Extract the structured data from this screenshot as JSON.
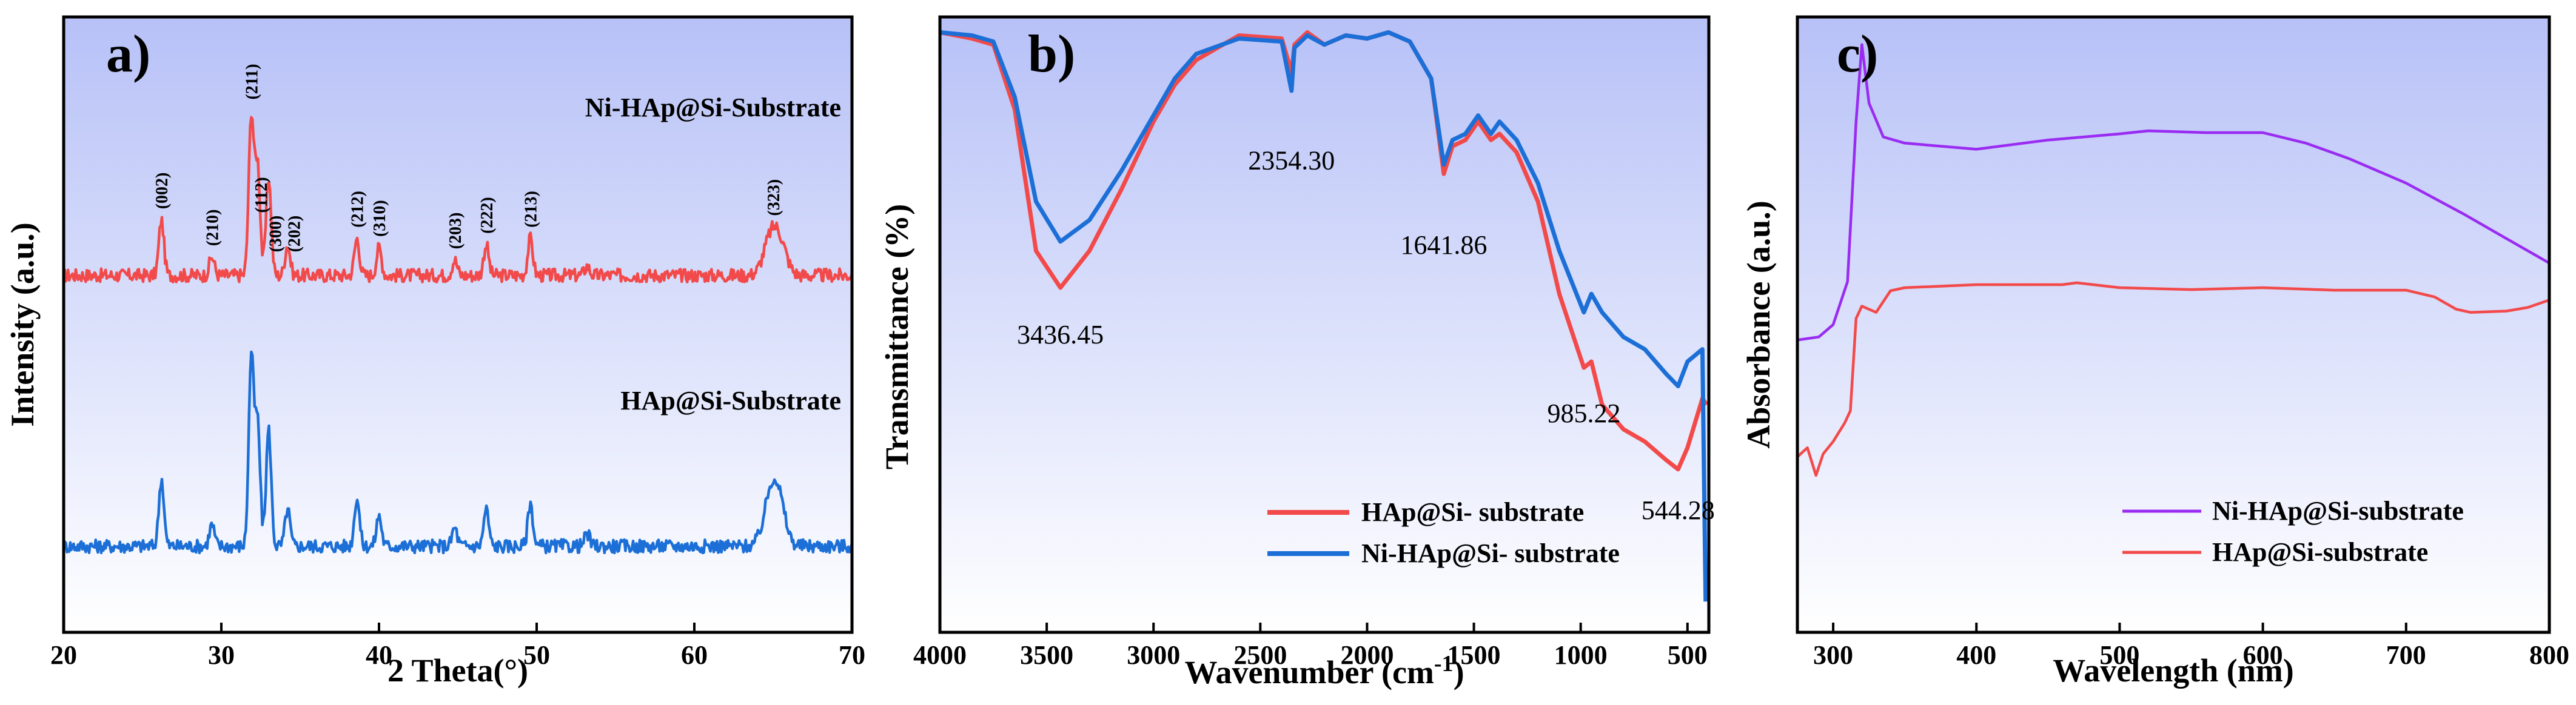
{
  "colors": {
    "red": "#f24a4a",
    "blue": "#1c6fd6",
    "purple": "#9a2bf2",
    "frame": "#000000",
    "bg_top": "#b7c1f7",
    "bg_bottom": "#ffffff"
  },
  "chart_data": [
    {
      "panel": "a)",
      "type": "line",
      "title": "",
      "xlabel": "2 Theta(°)",
      "ylabel": "Intensity (a.u.)",
      "xlim": [
        20,
        70
      ],
      "xticks": [
        20,
        30,
        40,
        50,
        60,
        70
      ],
      "yticks_labeled": false,
      "series": [
        {
          "name": "Ni-HAp@Si-Substrate",
          "color": "red",
          "baseline": 0.58,
          "peaks": [
            [
              26.2,
              0.09
            ],
            [
              29.4,
              0.03
            ],
            [
              31.9,
              0.26
            ],
            [
              32.3,
              0.18
            ],
            [
              33.0,
              0.16
            ],
            [
              34.2,
              0.05
            ],
            [
              38.6,
              0.06
            ],
            [
              40.0,
              0.045
            ],
            [
              44.8,
              0.025
            ],
            [
              46.8,
              0.05
            ],
            [
              49.6,
              0.06
            ],
            [
              53.2,
              0.015
            ],
            [
              64.8,
              0.05
            ],
            [
              65.4,
              0.05
            ]
          ]
        },
        {
          "name": "HAp@Si-Substrate",
          "color": "blue",
          "baseline": 0.14,
          "peaks": [
            [
              26.2,
              0.11
            ],
            [
              29.4,
              0.035
            ],
            [
              31.9,
              0.31
            ],
            [
              32.3,
              0.2
            ],
            [
              33.0,
              0.19
            ],
            [
              34.2,
              0.06
            ],
            [
              38.6,
              0.08
            ],
            [
              40.0,
              0.05
            ],
            [
              44.8,
              0.03
            ],
            [
              46.8,
              0.06
            ],
            [
              49.6,
              0.07
            ],
            [
              53.2,
              0.02
            ],
            [
              64.8,
              0.06
            ],
            [
              65.3,
              0.07
            ]
          ]
        }
      ],
      "annotations": [
        {
          "text": "(002)",
          "x": 26.2
        },
        {
          "text": "(210)",
          "x": 29.4
        },
        {
          "text": "(211)",
          "x": 31.9
        },
        {
          "text": "(112)",
          "x": 32.5
        },
        {
          "text": "(300)",
          "x": 33.4
        },
        {
          "text": "(202)",
          "x": 34.6
        },
        {
          "text": "(212)",
          "x": 38.6
        },
        {
          "text": "(310)",
          "x": 40.0
        },
        {
          "text": "(203)",
          "x": 44.8
        },
        {
          "text": "(222)",
          "x": 46.8
        },
        {
          "text": "(213)",
          "x": 49.6
        },
        {
          "text": "(323)",
          "x": 65.0
        }
      ]
    },
    {
      "panel": "b)",
      "type": "line",
      "title": "",
      "xlabel": "Wavenumber (cm",
      "xlabel_sup": "-1",
      "xlabel_end": ")",
      "ylabel": "Transmittance (%)",
      "xlim": [
        4000,
        400
      ],
      "xticks": [
        4000,
        3500,
        3000,
        2500,
        2000,
        1500,
        1000,
        500
      ],
      "xtick_labels": [
        "4000",
        "3500",
        "3000",
        "2500",
        "2000",
        "1500",
        "1000",
        "500"
      ],
      "series": [
        {
          "name": "HAp@Si- substrate",
          "color": "red",
          "points": [
            [
              4000,
              0.975
            ],
            [
              3850,
              0.965
            ],
            [
              3750,
              0.955
            ],
            [
              3650,
              0.85
            ],
            [
              3550,
              0.62
            ],
            [
              3436,
              0.56
            ],
            [
              3300,
              0.62
            ],
            [
              3150,
              0.72
            ],
            [
              3000,
              0.83
            ],
            [
              2900,
              0.89
            ],
            [
              2800,
              0.93
            ],
            [
              2600,
              0.97
            ],
            [
              2400,
              0.965
            ],
            [
              2354,
              0.91
            ],
            [
              2340,
              0.955
            ],
            [
              2280,
              0.975
            ],
            [
              2200,
              0.955
            ],
            [
              2100,
              0.97
            ],
            [
              2000,
              0.965
            ],
            [
              1900,
              0.975
            ],
            [
              1800,
              0.96
            ],
            [
              1700,
              0.9
            ],
            [
              1641,
              0.745
            ],
            [
              1600,
              0.79
            ],
            [
              1540,
              0.8
            ],
            [
              1480,
              0.83
            ],
            [
              1420,
              0.8
            ],
            [
              1380,
              0.81
            ],
            [
              1300,
              0.78
            ],
            [
              1200,
              0.7
            ],
            [
              1100,
              0.55
            ],
            [
              985,
              0.43
            ],
            [
              950,
              0.44
            ],
            [
              900,
              0.37
            ],
            [
              800,
              0.33
            ],
            [
              700,
              0.31
            ],
            [
              600,
              0.28
            ],
            [
              544,
              0.265
            ],
            [
              500,
              0.3
            ],
            [
              430,
              0.38
            ],
            [
              410,
              0.37
            ]
          ]
        },
        {
          "name": "Ni-HAp@Si- substrate",
          "color": "blue",
          "points": [
            [
              4000,
              0.975
            ],
            [
              3850,
              0.97
            ],
            [
              3750,
              0.96
            ],
            [
              3650,
              0.87
            ],
            [
              3550,
              0.7
            ],
            [
              3436,
              0.635
            ],
            [
              3300,
              0.67
            ],
            [
              3150,
              0.75
            ],
            [
              3000,
              0.84
            ],
            [
              2900,
              0.9
            ],
            [
              2800,
              0.94
            ],
            [
              2600,
              0.965
            ],
            [
              2400,
              0.96
            ],
            [
              2354,
              0.88
            ],
            [
              2340,
              0.95
            ],
            [
              2280,
              0.97
            ],
            [
              2200,
              0.955
            ],
            [
              2100,
              0.97
            ],
            [
              2000,
              0.965
            ],
            [
              1900,
              0.975
            ],
            [
              1800,
              0.96
            ],
            [
              1700,
              0.9
            ],
            [
              1641,
              0.76
            ],
            [
              1600,
              0.8
            ],
            [
              1540,
              0.81
            ],
            [
              1480,
              0.84
            ],
            [
              1420,
              0.81
            ],
            [
              1380,
              0.83
            ],
            [
              1300,
              0.8
            ],
            [
              1200,
              0.73
            ],
            [
              1100,
              0.62
            ],
            [
              985,
              0.52
            ],
            [
              950,
              0.55
            ],
            [
              900,
              0.52
            ],
            [
              800,
              0.48
            ],
            [
              700,
              0.46
            ],
            [
              600,
              0.42
            ],
            [
              544,
              0.4
            ],
            [
              500,
              0.44
            ],
            [
              430,
              0.46
            ],
            [
              415,
              0.05
            ]
          ]
        }
      ],
      "annotations": [
        {
          "text": "3436.45",
          "x": 3436
        },
        {
          "text": "2354.30",
          "x": 2354
        },
        {
          "text": "1641.86",
          "x": 1641
        },
        {
          "text": "985.22",
          "x": 985
        },
        {
          "text": "544.28",
          "x": 544
        }
      ],
      "legend": "bottom-right"
    },
    {
      "panel": "c)",
      "type": "line",
      "title": "",
      "xlabel": "Wavelength (nm)",
      "ylabel": "Absorbance (a.u.)",
      "xlim": [
        275,
        800
      ],
      "xticks": [
        300,
        400,
        500,
        600,
        700,
        800
      ],
      "series": [
        {
          "name": "Ni-HAp@Si-substrate",
          "color": "purple",
          "points": [
            [
              275,
              0.475
            ],
            [
              290,
              0.48
            ],
            [
              300,
              0.5
            ],
            [
              310,
              0.57
            ],
            [
              316,
              0.83
            ],
            [
              320,
              0.955
            ],
            [
              325,
              0.86
            ],
            [
              335,
              0.805
            ],
            [
              350,
              0.795
            ],
            [
              400,
              0.785
            ],
            [
              450,
              0.8
            ],
            [
              500,
              0.81
            ],
            [
              520,
              0.815
            ],
            [
              560,
              0.812
            ],
            [
              600,
              0.812
            ],
            [
              630,
              0.795
            ],
            [
              660,
              0.77
            ],
            [
              700,
              0.73
            ],
            [
              740,
              0.68
            ],
            [
              770,
              0.64
            ],
            [
              800,
              0.6
            ]
          ]
        },
        {
          "name": "HAp@Si-substrate",
          "color": "red",
          "points": [
            [
              275,
              0.285
            ],
            [
              282,
              0.3
            ],
            [
              288,
              0.255
            ],
            [
              293,
              0.29
            ],
            [
              300,
              0.31
            ],
            [
              308,
              0.34
            ],
            [
              312,
              0.36
            ],
            [
              316,
              0.51
            ],
            [
              320,
              0.53
            ],
            [
              330,
              0.52
            ],
            [
              340,
              0.555
            ],
            [
              350,
              0.56
            ],
            [
              400,
              0.565
            ],
            [
              460,
              0.565
            ],
            [
              470,
              0.568
            ],
            [
              500,
              0.56
            ],
            [
              550,
              0.557
            ],
            [
              600,
              0.56
            ],
            [
              650,
              0.556
            ],
            [
              700,
              0.556
            ],
            [
              720,
              0.545
            ],
            [
              735,
              0.525
            ],
            [
              745,
              0.52
            ],
            [
              770,
              0.522
            ],
            [
              785,
              0.528
            ],
            [
              800,
              0.54
            ]
          ]
        }
      ],
      "legend": "bottom-right"
    }
  ]
}
